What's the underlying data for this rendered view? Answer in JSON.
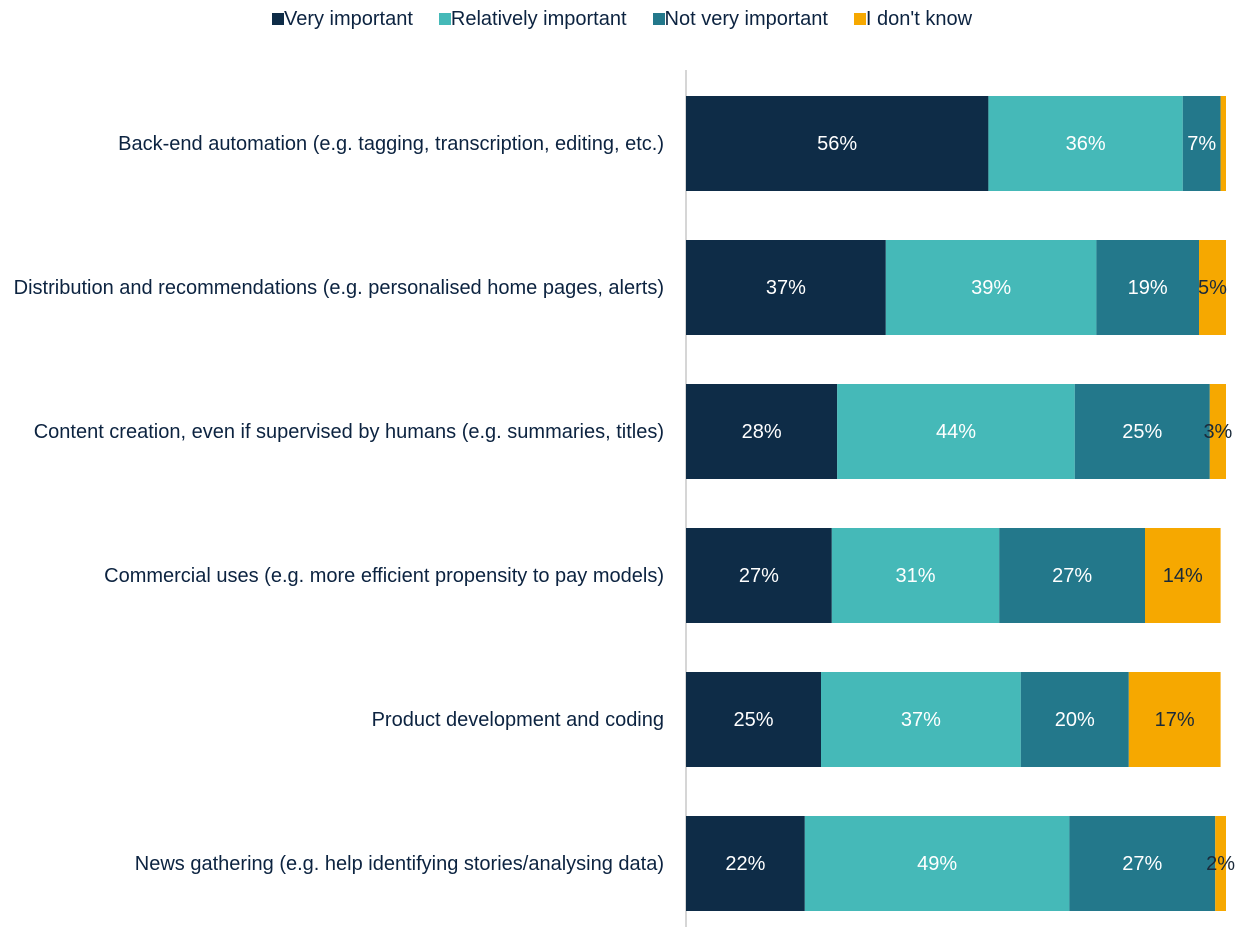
{
  "chart_data": {
    "type": "stacked_bar_horizontal",
    "categories": [
      "Back-end automation (e.g. tagging, transcription, editing, etc.)",
      "Distribution and recommendations (e.g. personalised home pages, alerts)",
      "Content creation, even if supervised by humans (e.g. summaries, titles)",
      "Commercial uses (e.g. more efficient propensity to pay models)",
      "Product development and coding",
      "News gathering (e.g. help identifying stories/analysing data)"
    ],
    "series": [
      {
        "name": "Very important",
        "color": "#0e2c47",
        "label_color": "#ffffff",
        "values": [
          56,
          37,
          28,
          27,
          25,
          22
        ],
        "value_labels": [
          "56%",
          "37%",
          "28%",
          "27%",
          "25%",
          "22%"
        ]
      },
      {
        "name": "Relatively important",
        "color": "#45b9b8",
        "label_color": "#ffffff",
        "values": [
          36,
          39,
          44,
          31,
          37,
          49
        ],
        "value_labels": [
          "36%",
          "39%",
          "44%",
          "31%",
          "37%",
          "49%"
        ]
      },
      {
        "name": "Not very important",
        "color": "#23788b",
        "label_color": "#ffffff",
        "values": [
          7,
          19,
          25,
          27,
          20,
          27
        ],
        "value_labels": [
          "7%",
          "19%",
          "25%",
          "27%",
          "20%",
          "27%"
        ]
      },
      {
        "name": "I don't know",
        "color": "#f6a800",
        "label_color": "#1a2a3a",
        "values": [
          1,
          5,
          3,
          14,
          17,
          2
        ],
        "value_labels": [
          null,
          "5%",
          "3%",
          "14%",
          "17%",
          "2%"
        ]
      }
    ],
    "xlim": [
      0,
      100
    ],
    "legend": "top"
  }
}
